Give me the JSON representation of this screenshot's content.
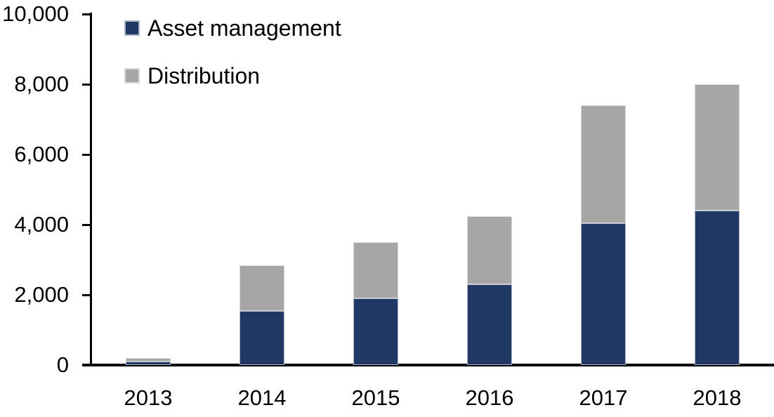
{
  "chart_data": {
    "type": "bar",
    "stacked": true,
    "title": "",
    "xlabel": "",
    "ylabel": "",
    "categories": [
      "2013",
      "2014",
      "2015",
      "2016",
      "2017",
      "2018"
    ],
    "series": [
      {
        "name": "Asset management",
        "color": "#1F3864",
        "border_color": "#AEB8CC",
        "values": [
          100,
          1550,
          1900,
          2300,
          4050,
          4400
        ]
      },
      {
        "name": "Distribution",
        "color": "#A6A6A6",
        "border_color": "#D9D9D9",
        "values": [
          100,
          1300,
          1600,
          1950,
          3350,
          3600
        ]
      }
    ],
    "totals": [
      200,
      2850,
      3500,
      4250,
      7400,
      8000
    ],
    "ylim": [
      0,
      10000
    ],
    "y_ticks": [
      0,
      2000,
      4000,
      6000,
      8000,
      10000
    ],
    "y_tick_labels": [
      "0",
      "2,000",
      "4,000",
      "6,000",
      "8,000",
      "10,000"
    ],
    "grid": false,
    "legend_position": "top-left-inside",
    "axis_color": "#000000",
    "background_color": "#FFFFFF",
    "text_color": "#000000"
  }
}
